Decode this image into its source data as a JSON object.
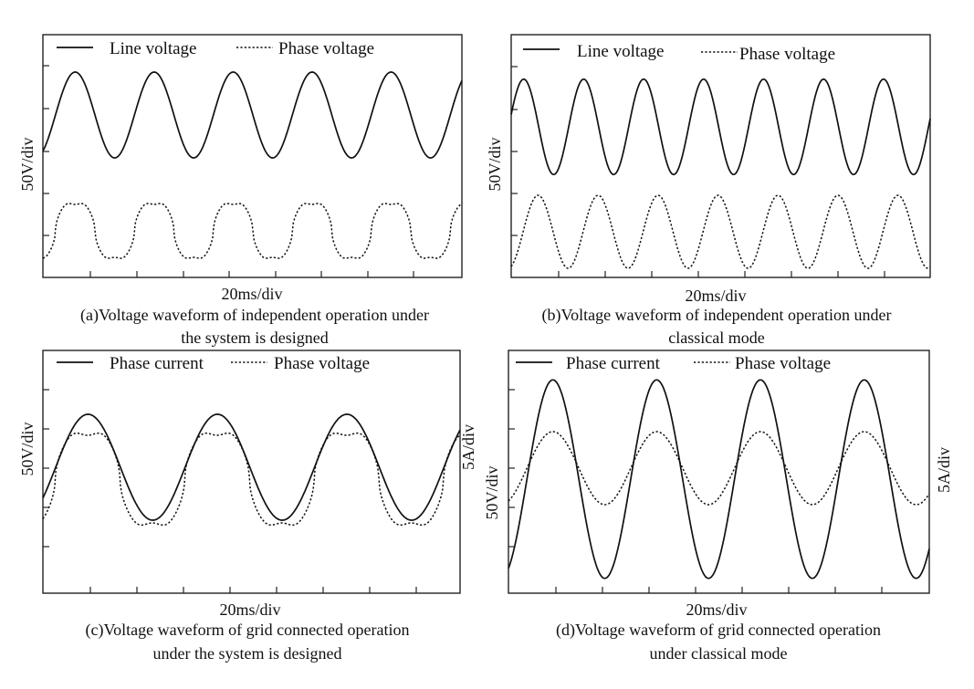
{
  "chart_data": [
    {
      "id": "a",
      "type": "line",
      "xlabel": "20ms/div",
      "ylabel": "50V/div",
      "caption": [
        "(a)Voltage waveform of independent operation under",
        "the system is designed"
      ],
      "series": [
        {
          "name": "Line voltage",
          "style": "solid",
          "shape": "sine",
          "periods": 5.2,
          "peak_y": 0.76,
          "trough_y": 0.92
        },
        {
          "name": "Phase voltage",
          "style": "dotted",
          "shape": "double-hump",
          "periods": 5.2,
          "peak_y": -0.55,
          "trough_y": -1.3
        }
      ]
    },
    {
      "id": "b",
      "type": "line",
      "xlabel": "20ms/div",
      "ylabel": "50V/div",
      "caption": [
        "(b)Voltage waveform of independent operation under",
        "classical mode"
      ],
      "series": [
        {
          "name": "Line voltage",
          "style": "solid",
          "shape": "sine",
          "periods": 7,
          "peak_y": 0.8,
          "trough_y": 1.21
        },
        {
          "name": "Phase voltage",
          "style": "dotted",
          "shape": "sine",
          "periods": 7,
          "peak_y": -0.55,
          "trough_y": -1.4
        }
      ]
    },
    {
      "id": "c",
      "type": "line",
      "xlabel": "20ms/div",
      "ylabel": "50V/div",
      "y2label": "5A/div",
      "caption": [
        "(c)Voltage waveform of grid connected operation",
        "under the system is designed"
      ],
      "series": [
        {
          "name": "Phase current",
          "style": "solid",
          "shape": "sine",
          "periods": 3.1,
          "peak_y": 2.8,
          "trough_y": 1.5
        },
        {
          "name": "Phase voltage",
          "style": "dotted",
          "shape": "double-hump",
          "periods": 3.1,
          "peak_y": 0.9,
          "trough_y": 1.2
        }
      ]
    },
    {
      "id": "d",
      "type": "line",
      "xlabel": "20ms/div",
      "ylabel": "50V/div",
      "y2label": "5A/div",
      "caption": [
        "(d)Voltage waveform of grid connected operation",
        "under  classical mode"
      ],
      "series": [
        {
          "name": "Phase current",
          "style": "solid",
          "shape": "sine",
          "periods": 4,
          "peak_y": 2.9,
          "trough_y": 2.9
        },
        {
          "name": "Phase voltage",
          "style": "dotted",
          "shape": "sine",
          "periods": 4,
          "peak_y": 0.9,
          "trough_y": 1.0
        }
      ]
    }
  ]
}
